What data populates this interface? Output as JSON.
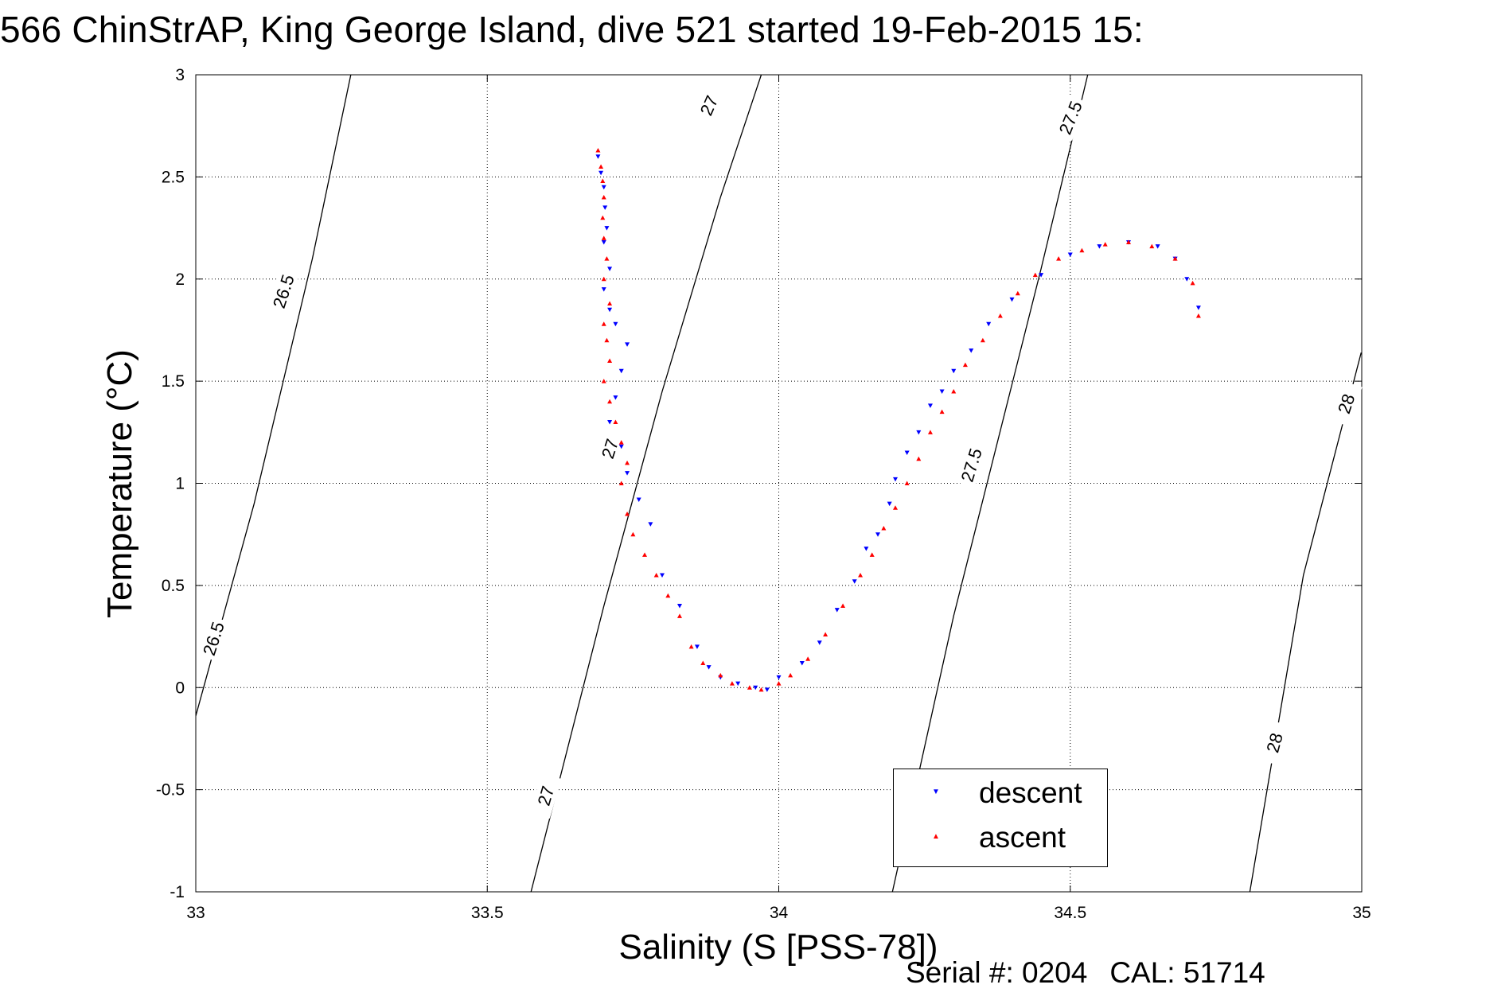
{
  "chart_data": {
    "type": "scatter",
    "title": "566 ChinStrAP, King George Island, dive 521 started 19-Feb-2015 15:",
    "xlabel": "Salinity (S [PSS-78])",
    "ylabel": "Temperature (°C)",
    "xlim": [
      33,
      35
    ],
    "ylim": [
      -1,
      3
    ],
    "xticks": [
      33,
      33.5,
      34,
      34.5,
      35
    ],
    "yticks": [
      -1,
      -0.5,
      0,
      0.5,
      1,
      1.5,
      2,
      2.5,
      3
    ],
    "xtick_labels": [
      "33",
      "33.5",
      "34",
      "34.5",
      "35"
    ],
    "ytick_labels": [
      "-1",
      "-0.5",
      "0",
      "0.5",
      "1",
      "1.5",
      "2",
      "2.5",
      "3"
    ],
    "grid": true,
    "legend_position": "bottom-right",
    "footer_text": [
      "Serial #: 0204",
      "CAL: 51714"
    ],
    "density_contours": [
      {
        "value": "26.5",
        "points": [
          [
            32.998,
            -0.16
          ],
          [
            33.1,
            0.9
          ],
          [
            33.2,
            2.1
          ],
          [
            33.266,
            3.0
          ]
        ]
      },
      {
        "value": "27",
        "points": [
          [
            33.575,
            -1.0
          ],
          [
            33.7,
            0.4
          ],
          [
            33.8,
            1.45
          ],
          [
            33.9,
            2.4
          ],
          [
            33.97,
            3.0
          ]
        ]
      },
      {
        "value": "27.5",
        "points": [
          [
            34.195,
            -1.0
          ],
          [
            34.3,
            0.35
          ],
          [
            34.45,
            2.05
          ],
          [
            34.53,
            3.0
          ]
        ]
      },
      {
        "value": "28",
        "points": [
          [
            34.808,
            -1.0
          ],
          [
            34.9,
            0.55
          ],
          [
            34.999,
            1.64
          ]
        ]
      }
    ],
    "contour_labels": [
      {
        "text": "26.5",
        "x": 33.15,
        "y": 1.94,
        "rot": -72
      },
      {
        "text": "26.5",
        "x": 33.03,
        "y": 0.24,
        "rot": -72
      },
      {
        "text": "27",
        "x": 33.88,
        "y": 2.85,
        "rot": -66
      },
      {
        "text": "27",
        "x": 33.71,
        "y": 1.17,
        "rot": -72
      },
      {
        "text": "27",
        "x": 33.6,
        "y": -0.53,
        "rot": -74
      },
      {
        "text": "27.5",
        "x": 34.5,
        "y": 2.79,
        "rot": -68
      },
      {
        "text": "27.5",
        "x": 34.33,
        "y": 1.09,
        "rot": -73
      },
      {
        "text": "28",
        "x": 34.973,
        "y": 1.39,
        "rot": -72
      },
      {
        "text": "28",
        "x": 34.85,
        "y": -0.27,
        "rot": -75
      }
    ],
    "series": [
      {
        "name": "descent",
        "color": "#0000ff",
        "marker": "triangle-down",
        "x": [
          33.69,
          33.695,
          33.7,
          33.702,
          33.705,
          33.7,
          33.71,
          33.7,
          33.71,
          33.72,
          33.74,
          33.73,
          33.72,
          33.71,
          33.73,
          33.74,
          33.76,
          33.78,
          33.8,
          33.83,
          33.86,
          33.88,
          33.9,
          33.93,
          33.96,
          33.98,
          34.0,
          34.04,
          34.07,
          34.1,
          34.13,
          34.15,
          34.17,
          34.19,
          34.2,
          34.22,
          34.24,
          34.26,
          34.28,
          34.3,
          34.33,
          34.36,
          34.4,
          34.45,
          34.5,
          34.55,
          34.6,
          34.65,
          34.68,
          34.7,
          34.72
        ],
        "y": [
          2.6,
          2.52,
          2.45,
          2.35,
          2.25,
          2.18,
          2.05,
          1.95,
          1.85,
          1.78,
          1.68,
          1.55,
          1.42,
          1.3,
          1.18,
          1.05,
          0.92,
          0.8,
          0.55,
          0.4,
          0.2,
          0.1,
          0.05,
          0.02,
          0.0,
          -0.01,
          0.05,
          0.12,
          0.22,
          0.38,
          0.52,
          0.68,
          0.75,
          0.9,
          1.02,
          1.15,
          1.25,
          1.38,
          1.45,
          1.55,
          1.65,
          1.78,
          1.9,
          2.02,
          2.12,
          2.16,
          2.18,
          2.16,
          2.1,
          2.0,
          1.86
        ]
      },
      {
        "name": "ascent",
        "color": "#ff0000",
        "marker": "triangle-up",
        "x": [
          33.69,
          33.695,
          33.698,
          33.7,
          33.698,
          33.7,
          33.705,
          33.7,
          33.71,
          33.7,
          33.705,
          33.71,
          33.7,
          33.71,
          33.72,
          33.73,
          33.74,
          33.73,
          33.74,
          33.75,
          33.77,
          33.79,
          33.81,
          33.83,
          33.85,
          33.87,
          33.9,
          33.92,
          33.95,
          33.97,
          34.0,
          34.02,
          34.05,
          34.08,
          34.11,
          34.14,
          34.16,
          34.18,
          34.2,
          34.22,
          34.24,
          34.26,
          34.28,
          34.3,
          34.32,
          34.35,
          34.38,
          34.41,
          34.44,
          34.48,
          34.52,
          34.56,
          34.6,
          34.64,
          34.68,
          34.71,
          34.72
        ],
        "y": [
          2.63,
          2.55,
          2.48,
          2.4,
          2.3,
          2.2,
          2.1,
          2.0,
          1.88,
          1.78,
          1.7,
          1.6,
          1.5,
          1.4,
          1.3,
          1.2,
          1.1,
          1.0,
          0.85,
          0.75,
          0.65,
          0.55,
          0.45,
          0.35,
          0.2,
          0.12,
          0.06,
          0.02,
          0.0,
          -0.01,
          0.02,
          0.06,
          0.14,
          0.26,
          0.4,
          0.55,
          0.65,
          0.78,
          0.88,
          1.0,
          1.12,
          1.25,
          1.35,
          1.45,
          1.58,
          1.7,
          1.82,
          1.93,
          2.02,
          2.1,
          2.14,
          2.17,
          2.18,
          2.16,
          2.1,
          1.98,
          1.82
        ]
      }
    ]
  }
}
